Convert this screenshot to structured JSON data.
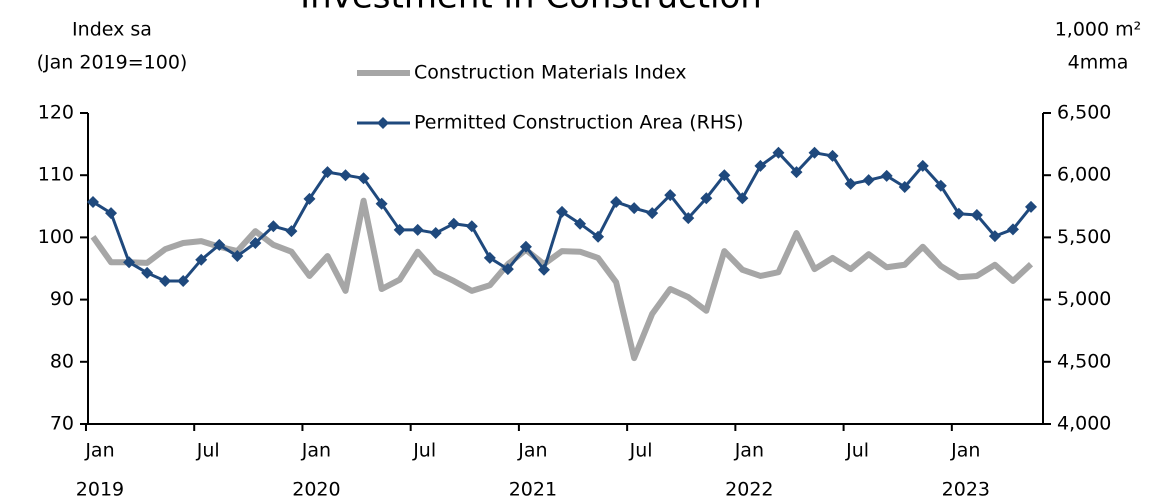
{
  "chart_data": {
    "type": "line",
    "title": "Investment in Construction",
    "y_label": [
      "Index sa",
      "(Jan 2019=100)"
    ],
    "y2_label": [
      "1,000 m²",
      "4mma"
    ],
    "categories": [
      "Jan",
      null,
      null,
      null,
      null,
      null,
      "Jul",
      null,
      null,
      null,
      null,
      null,
      "Jan",
      null,
      null,
      null,
      null,
      null,
      "Jul",
      null,
      null,
      null,
      null,
      null,
      "Jan",
      null,
      null,
      null,
      null,
      null,
      "Jul",
      null,
      null,
      null,
      null,
      null,
      "Jan",
      null,
      null,
      null,
      null,
      null,
      "Jul",
      null,
      null,
      null,
      null,
      null,
      "Jan",
      null,
      null,
      null,
      null
    ],
    "category_years": [
      "2019",
      null,
      null,
      null,
      null,
      null,
      null,
      null,
      null,
      null,
      null,
      null,
      "2020",
      null,
      null,
      null,
      null,
      null,
      null,
      null,
      null,
      null,
      null,
      null,
      "2021",
      null,
      null,
      null,
      null,
      null,
      null,
      null,
      null,
      null,
      null,
      null,
      "2022",
      null,
      null,
      null,
      null,
      null,
      null,
      null,
      null,
      null,
      null,
      null,
      "2023",
      null,
      null,
      null,
      null
    ],
    "series": [
      {
        "name": "Construction Materials Index",
        "color": "#a6a6a6",
        "axis": "y",
        "values": [
          100.1,
          96.0,
          96.0,
          95.9,
          98.1,
          99.1,
          99.4,
          98.5,
          97.8,
          101.0,
          98.8,
          97.7,
          93.8,
          97.0,
          91.4,
          105.9,
          91.7,
          93.2,
          97.7,
          94.4,
          93.0,
          91.4,
          92.3,
          95.7,
          98.0,
          95.7,
          97.8,
          97.7,
          96.7,
          92.8,
          80.6,
          87.7,
          91.7,
          90.4,
          88.2,
          97.8,
          94.8,
          93.8,
          94.4,
          100.7,
          94.9,
          96.7,
          94.9,
          97.3,
          95.2,
          95.6,
          98.5,
          95.4,
          93.6,
          93.8,
          95.6,
          93.0,
          95.7
        ]
      },
      {
        "name": "Permitted Construction Area (RHS)",
        "color": "#1f497d",
        "axis": "y2",
        "values": [
          5785,
          5695,
          5300,
          5215,
          5150,
          5150,
          5320,
          5440,
          5350,
          5455,
          5590,
          5550,
          5810,
          6025,
          6000,
          5975,
          5770,
          5560,
          5560,
          5535,
          5610,
          5590,
          5335,
          5245,
          5425,
          5240,
          5705,
          5610,
          5505,
          5785,
          5735,
          5695,
          5840,
          5655,
          5815,
          6000,
          5815,
          6075,
          6180,
          6025,
          6180,
          6155,
          5930,
          5960,
          5995,
          5905,
          6075,
          5915,
          5690,
          5680,
          5510,
          5565,
          5745
        ]
      }
    ],
    "ylim": [
      70,
      120
    ],
    "yticks": [
      70,
      80,
      90,
      100,
      110,
      120
    ],
    "y2lim": [
      4000,
      6500
    ],
    "y2ticks": [
      {
        "value": 4000,
        "label": "4,000"
      },
      {
        "value": 4500,
        "label": "4,500"
      },
      {
        "value": 5000,
        "label": "5,000"
      },
      {
        "value": 5500,
        "label": "5,500"
      },
      {
        "value": 6000,
        "label": "6,000"
      },
      {
        "value": 6500,
        "label": "6,500"
      }
    ],
    "grid": false,
    "legend": "top-center"
  }
}
